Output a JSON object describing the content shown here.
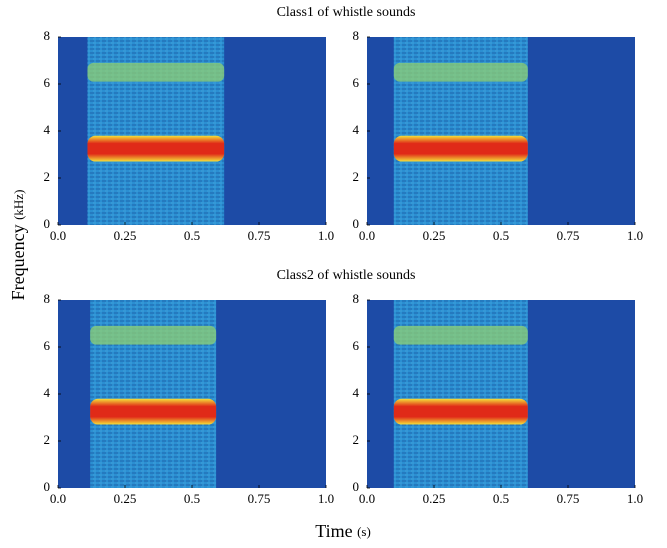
{
  "x_label": "Time",
  "x_label_unit": "(s)",
  "y_label": "Frequency",
  "y_label_unit": "(kHz)",
  "colors": {
    "noise": "#1d4ba6",
    "signal": "#2b8fd2",
    "tone_edge": "#f5e23a",
    "tone_core": "#e02a18",
    "harmonic": "#8fcf72"
  },
  "chart_data": [
    {
      "type": "spectrogram",
      "title": "Class1 of whistle sounds",
      "xlim": [
        0,
        1
      ],
      "ylim": [
        0,
        8
      ],
      "xticks": [
        {
          "value": 0,
          "label": "0.0"
        },
        0.25,
        0.5,
        0.75,
        {
          "value": 1,
          "label": "1.0"
        }
      ],
      "yticks": [
        0,
        2,
        4,
        6,
        8
      ],
      "onset": 0.11,
      "offset": 0.62,
      "tone": [
        2.7,
        3.8
      ],
      "harmonic": [
        6.1,
        6.9
      ]
    },
    {
      "type": "spectrogram",
      "xlim": [
        0,
        1
      ],
      "ylim": [
        0,
        8
      ],
      "xticks": [
        {
          "value": 0,
          "label": "0.0"
        },
        0.25,
        0.5,
        0.75,
        {
          "value": 1,
          "label": "1.0"
        }
      ],
      "yticks": [
        0,
        2,
        4,
        6,
        8
      ],
      "onset": 0.1,
      "offset": 0.6,
      "tone": [
        2.7,
        3.8
      ],
      "harmonic": [
        6.1,
        6.9
      ]
    },
    {
      "type": "spectrogram",
      "title": "Class2 of whistle sounds",
      "xlim": [
        0,
        1
      ],
      "ylim": [
        0,
        8
      ],
      "xticks": [
        {
          "value": 0,
          "label": "0.0"
        },
        0.25,
        0.5,
        0.75,
        {
          "value": 1,
          "label": "1.0"
        }
      ],
      "yticks": [
        0,
        2,
        4,
        6,
        8
      ],
      "onset": 0.12,
      "offset": 0.59,
      "tone": [
        2.7,
        3.8
      ],
      "harmonic": [
        6.1,
        6.9
      ]
    },
    {
      "type": "spectrogram",
      "xlim": [
        0,
        1
      ],
      "ylim": [
        0,
        8
      ],
      "xticks": [
        {
          "value": 0,
          "label": "0.0"
        },
        0.25,
        0.5,
        0.75,
        {
          "value": 1,
          "label": "1.0"
        }
      ],
      "yticks": [
        0,
        2,
        4,
        6,
        8
      ],
      "onset": 0.1,
      "offset": 0.6,
      "tone": [
        2.7,
        3.8
      ],
      "harmonic": [
        6.1,
        6.9
      ]
    }
  ]
}
